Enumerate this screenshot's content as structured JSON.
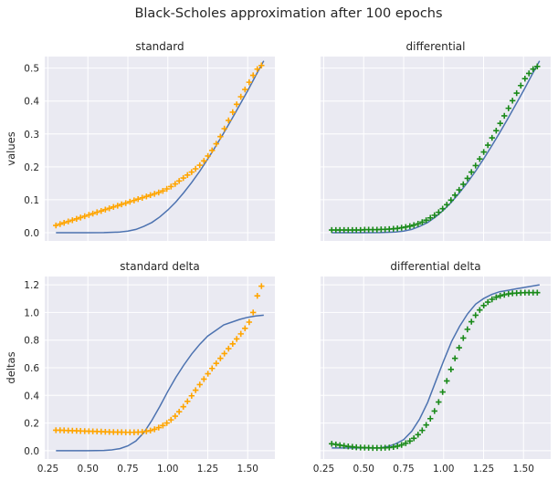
{
  "figure": {
    "title": "Black-Scholes approximation after 100 epochs"
  },
  "colors": {
    "line": "#4c72b0",
    "standard_markers": "#ffa500",
    "differential_markers": "#1a8a1a",
    "background": "#eaeaf2"
  },
  "chart_data": [
    {
      "type": "line",
      "title": "standard",
      "ylabel": "values",
      "xlabel": "",
      "xlim": [
        0.23,
        1.67
      ],
      "ylim": [
        -0.025,
        0.535
      ],
      "xticks": [
        "0.25",
        "0.50",
        "0.75",
        "1.00",
        "1.25",
        "1.50"
      ],
      "xtick_values": [
        0.25,
        0.5,
        0.75,
        1.0,
        1.25,
        1.5
      ],
      "show_xticklabels": false,
      "yticks": [
        "0.0",
        "0.1",
        "0.2",
        "0.3",
        "0.4",
        "0.5"
      ],
      "ytick_values": [
        0.0,
        0.1,
        0.2,
        0.3,
        0.4,
        0.5
      ],
      "show_yticklabels": true,
      "grid": true,
      "marker_color": "standard",
      "series": [
        {
          "kind": "line",
          "x": [
            0.3,
            0.4,
            0.5,
            0.6,
            0.7,
            0.75,
            0.8,
            0.85,
            0.9,
            0.95,
            1.0,
            1.05,
            1.1,
            1.15,
            1.2,
            1.25,
            1.3,
            1.35,
            1.4,
            1.45,
            1.5,
            1.55,
            1.6
          ],
          "y": [
            0.0,
            0.0,
            0.0,
            0.0002,
            0.002,
            0.005,
            0.01,
            0.019,
            0.031,
            0.048,
            0.069,
            0.093,
            0.122,
            0.153,
            0.187,
            0.224,
            0.263,
            0.303,
            0.345,
            0.388,
            0.432,
            0.477,
            0.522
          ]
        },
        {
          "kind": "scatter",
          "x": [
            0.3,
            0.326,
            0.351,
            0.377,
            0.403,
            0.429,
            0.454,
            0.48,
            0.506,
            0.531,
            0.557,
            0.583,
            0.609,
            0.634,
            0.66,
            0.686,
            0.711,
            0.737,
            0.763,
            0.789,
            0.814,
            0.84,
            0.866,
            0.891,
            0.917,
            0.943,
            0.969,
            0.994,
            1.02,
            1.046,
            1.071,
            1.097,
            1.123,
            1.149,
            1.174,
            1.2,
            1.226,
            1.251,
            1.277,
            1.303,
            1.329,
            1.354,
            1.38,
            1.406,
            1.431,
            1.457,
            1.483,
            1.509,
            1.534,
            1.56,
            1.586
          ],
          "y": [
            0.022,
            0.026,
            0.03,
            0.034,
            0.038,
            0.042,
            0.046,
            0.05,
            0.054,
            0.058,
            0.062,
            0.066,
            0.07,
            0.074,
            0.078,
            0.082,
            0.086,
            0.09,
            0.094,
            0.098,
            0.102,
            0.106,
            0.11,
            0.114,
            0.118,
            0.122,
            0.127,
            0.133,
            0.14,
            0.148,
            0.157,
            0.166,
            0.175,
            0.184,
            0.194,
            0.205,
            0.218,
            0.233,
            0.25,
            0.27,
            0.292,
            0.316,
            0.341,
            0.366,
            0.39,
            0.413,
            0.435,
            0.457,
            0.478,
            0.497,
            0.508
          ]
        }
      ]
    },
    {
      "type": "line",
      "title": "differential",
      "ylabel": "",
      "xlabel": "",
      "xlim": [
        0.23,
        1.67
      ],
      "ylim": [
        -0.025,
        0.535
      ],
      "xticks": [
        "0.25",
        "0.50",
        "0.75",
        "1.00",
        "1.25",
        "1.50"
      ],
      "xtick_values": [
        0.25,
        0.5,
        0.75,
        1.0,
        1.25,
        1.5
      ],
      "show_xticklabels": false,
      "yticks": [
        "0.0",
        "0.1",
        "0.2",
        "0.3",
        "0.4",
        "0.5"
      ],
      "ytick_values": [
        0.0,
        0.1,
        0.2,
        0.3,
        0.4,
        0.5
      ],
      "show_yticklabels": false,
      "grid": true,
      "marker_color": "differential",
      "series": [
        {
          "kind": "line",
          "x": [
            0.3,
            0.4,
            0.5,
            0.6,
            0.7,
            0.75,
            0.8,
            0.85,
            0.9,
            0.95,
            1.0,
            1.05,
            1.1,
            1.15,
            1.2,
            1.25,
            1.3,
            1.35,
            1.4,
            1.45,
            1.5,
            1.55,
            1.6
          ],
          "y": [
            0.0,
            0.0,
            0.0,
            0.0002,
            0.002,
            0.005,
            0.01,
            0.019,
            0.031,
            0.048,
            0.069,
            0.093,
            0.122,
            0.153,
            0.187,
            0.224,
            0.263,
            0.303,
            0.345,
            0.388,
            0.432,
            0.477,
            0.522
          ]
        },
        {
          "kind": "scatter",
          "x": [
            0.3,
            0.326,
            0.351,
            0.377,
            0.403,
            0.429,
            0.454,
            0.48,
            0.506,
            0.531,
            0.557,
            0.583,
            0.609,
            0.634,
            0.66,
            0.686,
            0.711,
            0.737,
            0.763,
            0.789,
            0.814,
            0.84,
            0.866,
            0.891,
            0.917,
            0.943,
            0.969,
            0.994,
            1.02,
            1.046,
            1.071,
            1.097,
            1.123,
            1.149,
            1.174,
            1.2,
            1.226,
            1.251,
            1.277,
            1.303,
            1.329,
            1.354,
            1.38,
            1.406,
            1.431,
            1.457,
            1.483,
            1.509,
            1.534,
            1.56,
            1.586
          ],
          "y": [
            0.008,
            0.008,
            0.008,
            0.008,
            0.008,
            0.008,
            0.008,
            0.008,
            0.009,
            0.009,
            0.009,
            0.009,
            0.01,
            0.01,
            0.011,
            0.012,
            0.013,
            0.015,
            0.017,
            0.02,
            0.023,
            0.027,
            0.032,
            0.038,
            0.045,
            0.053,
            0.062,
            0.073,
            0.085,
            0.099,
            0.114,
            0.13,
            0.147,
            0.165,
            0.184,
            0.204,
            0.224,
            0.245,
            0.266,
            0.288,
            0.31,
            0.332,
            0.355,
            0.378,
            0.401,
            0.424,
            0.447,
            0.468,
            0.484,
            0.497,
            0.505
          ]
        }
      ]
    },
    {
      "type": "line",
      "title": "standard delta",
      "ylabel": "deltas",
      "xlabel": "",
      "xlim": [
        0.23,
        1.67
      ],
      "ylim": [
        -0.06,
        1.26
      ],
      "xticks": [
        "0.25",
        "0.50",
        "0.75",
        "1.00",
        "1.25",
        "1.50"
      ],
      "xtick_values": [
        0.25,
        0.5,
        0.75,
        1.0,
        1.25,
        1.5
      ],
      "show_xticklabels": true,
      "yticks": [
        "0.0",
        "0.2",
        "0.4",
        "0.6",
        "0.8",
        "1.0",
        "1.2"
      ],
      "ytick_values": [
        0.0,
        0.2,
        0.4,
        0.6,
        0.8,
        1.0,
        1.2
      ],
      "show_yticklabels": true,
      "grid": true,
      "marker_color": "standard",
      "series": [
        {
          "kind": "line",
          "x": [
            0.3,
            0.4,
            0.5,
            0.6,
            0.65,
            0.7,
            0.75,
            0.8,
            0.85,
            0.9,
            0.95,
            1.0,
            1.05,
            1.1,
            1.15,
            1.2,
            1.25,
            1.3,
            1.35,
            1.4,
            1.45,
            1.5,
            1.55,
            1.6
          ],
          "y": [
            0.0,
            0.0,
            0.0,
            0.002,
            0.006,
            0.015,
            0.035,
            0.07,
            0.13,
            0.22,
            0.32,
            0.43,
            0.53,
            0.62,
            0.7,
            0.77,
            0.83,
            0.87,
            0.91,
            0.93,
            0.95,
            0.965,
            0.975,
            0.98
          ]
        },
        {
          "kind": "scatter",
          "x": [
            0.3,
            0.326,
            0.351,
            0.377,
            0.403,
            0.429,
            0.454,
            0.48,
            0.506,
            0.531,
            0.557,
            0.583,
            0.609,
            0.634,
            0.66,
            0.686,
            0.711,
            0.737,
            0.763,
            0.789,
            0.814,
            0.84,
            0.866,
            0.891,
            0.917,
            0.943,
            0.969,
            0.994,
            1.02,
            1.046,
            1.071,
            1.097,
            1.123,
            1.149,
            1.174,
            1.2,
            1.226,
            1.251,
            1.277,
            1.303,
            1.329,
            1.354,
            1.38,
            1.406,
            1.431,
            1.457,
            1.483,
            1.509,
            1.534,
            1.56,
            1.586
          ],
          "y": [
            0.148,
            0.148,
            0.147,
            0.146,
            0.145,
            0.144,
            0.143,
            0.142,
            0.141,
            0.14,
            0.139,
            0.138,
            0.137,
            0.136,
            0.135,
            0.134,
            0.134,
            0.133,
            0.133,
            0.133,
            0.134,
            0.136,
            0.14,
            0.146,
            0.155,
            0.167,
            0.182,
            0.2,
            0.223,
            0.25,
            0.282,
            0.318,
            0.357,
            0.397,
            0.438,
            0.478,
            0.518,
            0.557,
            0.595,
            0.632,
            0.668,
            0.703,
            0.738,
            0.773,
            0.808,
            0.845,
            0.885,
            0.93,
            1.0,
            1.12,
            1.19
          ]
        }
      ]
    },
    {
      "type": "line",
      "title": "differential delta",
      "ylabel": "",
      "xlabel": "",
      "xlim": [
        0.23,
        1.67
      ],
      "ylim": [
        -0.06,
        1.26
      ],
      "xticks": [
        "0.25",
        "0.50",
        "0.75",
        "1.00",
        "1.25",
        "1.50"
      ],
      "xtick_values": [
        0.25,
        0.5,
        0.75,
        1.0,
        1.25,
        1.5
      ],
      "show_xticklabels": true,
      "yticks": [
        "0.0",
        "0.2",
        "0.4",
        "0.6",
        "0.8",
        "1.0",
        "1.2"
      ],
      "ytick_values": [
        0.0,
        0.2,
        0.4,
        0.6,
        0.8,
        1.0,
        1.2
      ],
      "show_yticklabels": false,
      "grid": true,
      "marker_color": "differential",
      "series": [
        {
          "kind": "line",
          "x": [
            0.3,
            0.35,
            0.4,
            0.45,
            0.5,
            0.55,
            0.6,
            0.65,
            0.7,
            0.75,
            0.8,
            0.85,
            0.9,
            0.95,
            1.0,
            1.05,
            1.1,
            1.15,
            1.2,
            1.25,
            1.3,
            1.35,
            1.4,
            1.45,
            1.5,
            1.55,
            1.6
          ],
          "y": [
            0.02,
            0.02,
            0.02,
            0.02,
            0.02,
            0.02,
            0.02,
            0.03,
            0.05,
            0.08,
            0.14,
            0.23,
            0.35,
            0.5,
            0.65,
            0.79,
            0.9,
            0.99,
            1.06,
            1.1,
            1.13,
            1.15,
            1.16,
            1.17,
            1.18,
            1.19,
            1.2
          ]
        },
        {
          "kind": "scatter",
          "x": [
            0.3,
            0.326,
            0.351,
            0.377,
            0.403,
            0.429,
            0.454,
            0.48,
            0.506,
            0.531,
            0.557,
            0.583,
            0.609,
            0.634,
            0.66,
            0.686,
            0.711,
            0.737,
            0.763,
            0.789,
            0.814,
            0.84,
            0.866,
            0.891,
            0.917,
            0.943,
            0.969,
            0.994,
            1.02,
            1.046,
            1.071,
            1.097,
            1.123,
            1.149,
            1.174,
            1.2,
            1.226,
            1.251,
            1.277,
            1.303,
            1.329,
            1.354,
            1.38,
            1.406,
            1.431,
            1.457,
            1.483,
            1.509,
            1.534,
            1.56,
            1.586
          ],
          "y": [
            0.05,
            0.045,
            0.04,
            0.035,
            0.031,
            0.028,
            0.025,
            0.023,
            0.022,
            0.021,
            0.02,
            0.02,
            0.02,
            0.021,
            0.023,
            0.027,
            0.033,
            0.042,
            0.054,
            0.07,
            0.09,
            0.116,
            0.147,
            0.186,
            0.232,
            0.287,
            0.352,
            0.425,
            0.505,
            0.588,
            0.668,
            0.745,
            0.815,
            0.878,
            0.933,
            0.98,
            1.018,
            1.05,
            1.075,
            1.095,
            1.11,
            1.12,
            1.128,
            1.134,
            1.138,
            1.14,
            1.142,
            1.143,
            1.143,
            1.143,
            1.143
          ]
        }
      ]
    }
  ]
}
